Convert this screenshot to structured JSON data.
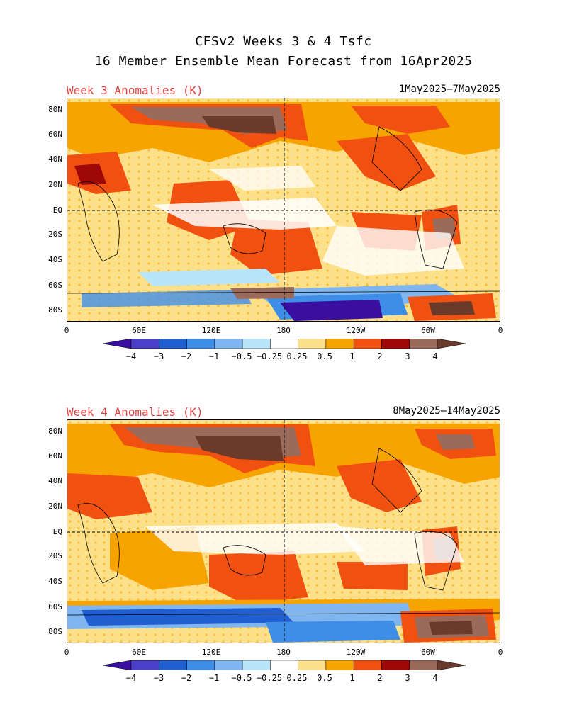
{
  "title": {
    "line1": "CFSv2 Weeks 3 & 4 Tsfc",
    "line2": "16 Member Ensemble Mean Forecast from 16Apr2025"
  },
  "panels": [
    {
      "label": "Week 3 Anomalies (K)",
      "dates": "1May2025–7May2025"
    },
    {
      "label": "Week 4 Anomalies (K)",
      "dates": "8May2025–14May2025"
    }
  ],
  "axes": {
    "lat_labels": [
      "80N",
      "60N",
      "40N",
      "20N",
      "EQ",
      "20S",
      "40S",
      "60S",
      "80S"
    ],
    "lon_labels": [
      "0",
      "60E",
      "120E",
      "180",
      "120W",
      "60W",
      "0"
    ]
  },
  "colorbar": {
    "labels": [
      "−4",
      "−3",
      "−2",
      "−1",
      "−0.5",
      "−0.25",
      "0.25",
      "0.5",
      "1",
      "2",
      "3",
      "4"
    ],
    "colors": [
      "#3a0fa0",
      "#4a3fc8",
      "#1f5fd0",
      "#3e8ee8",
      "#7fb6f0",
      "#b8e6f8",
      "#ffffff",
      "#fde08a",
      "#f8a400",
      "#f05010",
      "#a00808",
      "#9a6a5a",
      "#6a3a2a"
    ]
  }
}
